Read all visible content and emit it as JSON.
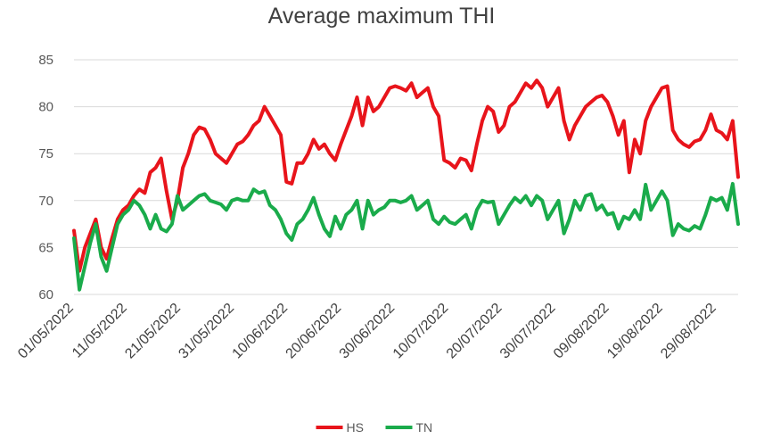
{
  "chart_data": {
    "type": "line",
    "title": "Average maximum THI",
    "xlabel": "",
    "ylabel": "",
    "ylim": [
      60,
      85
    ],
    "yticks": [
      "60",
      "65",
      "70",
      "75",
      "80",
      "85"
    ],
    "x_start": "01/05/2022",
    "x_end": "02/09/2022",
    "xticks": [
      "01/05/2022",
      "11/05/2022",
      "21/05/2022",
      "31/05/2022",
      "10/06/2022",
      "20/06/2022",
      "30/06/2022",
      "10/07/2022",
      "20/07/2022",
      "30/07/2022",
      "09/08/2022",
      "19/08/2022",
      "29/08/2022"
    ],
    "grid": true,
    "legend": "bottom",
    "series": [
      {
        "name": "HS",
        "color": "#e8141b",
        "values": [
          66.8,
          62.5,
          65.0,
          66.5,
          68.0,
          65.0,
          63.8,
          66.0,
          68.0,
          69.0,
          69.5,
          70.5,
          71.2,
          70.8,
          73.0,
          73.5,
          74.5,
          71.0,
          68.0,
          70.0,
          73.5,
          75.0,
          77.0,
          77.8,
          77.6,
          76.5,
          75.0,
          74.5,
          74.0,
          75.0,
          76.0,
          76.3,
          77.0,
          78.0,
          78.5,
          80.0,
          79.0,
          78.0,
          77.0,
          72.0,
          71.8,
          74.0,
          74.0,
          75.0,
          76.5,
          75.5,
          76.0,
          75.0,
          74.3,
          76.0,
          77.5,
          79.0,
          81.0,
          78.0,
          81.0,
          79.5,
          80.0,
          81.0,
          82.0,
          82.2,
          82.0,
          81.7,
          82.5,
          81.0,
          81.5,
          82.0,
          80.0,
          79.0,
          74.3,
          74.0,
          73.5,
          74.5,
          74.3,
          73.2,
          76.0,
          78.5,
          80.0,
          79.5,
          77.3,
          78.0,
          80.0,
          80.5,
          81.5,
          82.5,
          82.0,
          82.8,
          82.0,
          80.0,
          81.0,
          82.0,
          78.5,
          76.5,
          78.0,
          79.0,
          80.0,
          80.5,
          81.0,
          81.2,
          80.5,
          79.0,
          77.0,
          78.5,
          73.0,
          76.5,
          75.0,
          78.5,
          80.0,
          81.0,
          82.0,
          82.2,
          77.5,
          76.5,
          76.0,
          75.7,
          76.3,
          76.5,
          77.5,
          79.2,
          77.5,
          77.2,
          76.5,
          78.5,
          72.5
        ]
      },
      {
        "name": "TN",
        "color": "#1aab4b",
        "values": [
          66.0,
          60.5,
          63.0,
          65.5,
          67.5,
          64.0,
          62.5,
          65.0,
          67.5,
          68.5,
          69.0,
          70.0,
          69.5,
          68.5,
          67.0,
          68.5,
          67.0,
          66.7,
          67.5,
          70.5,
          69.0,
          69.5,
          70.0,
          70.5,
          70.7,
          70.0,
          69.8,
          69.6,
          69.0,
          70.0,
          70.2,
          70.0,
          70.0,
          71.2,
          70.8,
          71.0,
          69.5,
          69.0,
          68.0,
          66.5,
          65.8,
          67.5,
          68.0,
          69.0,
          70.3,
          68.5,
          67.0,
          66.2,
          68.3,
          67.0,
          68.5,
          69.0,
          70.0,
          67.0,
          70.0,
          68.5,
          69.0,
          69.3,
          70.0,
          70.0,
          69.8,
          70.0,
          70.5,
          69.0,
          69.5,
          70.0,
          68.0,
          67.5,
          68.3,
          67.7,
          67.5,
          68.0,
          68.5,
          67.0,
          69.0,
          70.0,
          69.8,
          69.9,
          67.5,
          68.5,
          69.5,
          70.3,
          69.8,
          70.5,
          69.5,
          70.5,
          70.0,
          68.0,
          69.0,
          70.0,
          66.5,
          68.0,
          70.0,
          69.0,
          70.5,
          70.7,
          69.0,
          69.5,
          68.5,
          68.7,
          67.0,
          68.3,
          68.0,
          69.0,
          68.0,
          71.7,
          69.0,
          70.0,
          71.0,
          70.0,
          66.3,
          67.5,
          67.0,
          66.8,
          67.3,
          67.0,
          68.5,
          70.3,
          70.0,
          70.3,
          69.0,
          71.8,
          67.5
        ]
      }
    ]
  }
}
